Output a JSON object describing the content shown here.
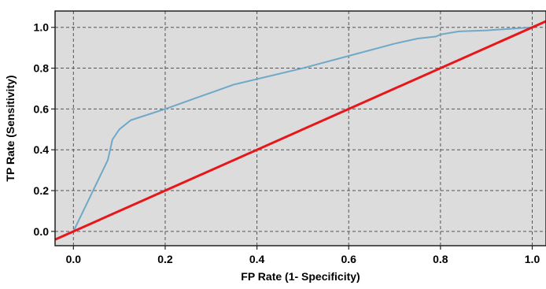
{
  "chart_data": {
    "type": "line",
    "xlabel": "FP Rate (1- Specificity)",
    "ylabel": "TP Rate (Sensitivity)",
    "xlim": [
      -0.04,
      1.03
    ],
    "ylim": [
      -0.07,
      1.08
    ],
    "x_ticks": [
      "0.0",
      "0.2",
      "0.4",
      "0.6",
      "0.8",
      "1.0"
    ],
    "y_ticks": [
      "0.0",
      "0.2",
      "0.4",
      "0.6",
      "0.8",
      "1.0"
    ],
    "grid": true,
    "background": "#dcdcdc",
    "series": [
      {
        "color": "#6fa8c8",
        "x": [
          0.0,
          0.075,
          0.085,
          0.1,
          0.125,
          0.2,
          0.3,
          0.35,
          0.36,
          0.5,
          0.6,
          0.7,
          0.75,
          0.79,
          0.8,
          0.84,
          0.9,
          1.0
        ],
        "y": [
          0.0,
          0.35,
          0.45,
          0.5,
          0.545,
          0.6,
          0.68,
          0.72,
          0.725,
          0.8,
          0.86,
          0.92,
          0.945,
          0.955,
          0.965,
          0.98,
          0.985,
          1.0
        ]
      },
      {
        "color": "#e8161a",
        "x": [
          -0.04,
          1.03
        ],
        "y": [
          -0.04,
          1.03
        ]
      }
    ]
  }
}
